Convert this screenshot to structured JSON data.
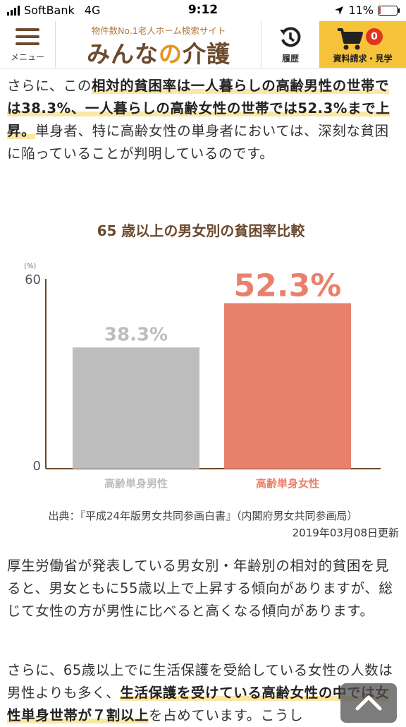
{
  "status_bar": {
    "carrier": "SoftBank",
    "network": "4G",
    "time": "9:12",
    "battery_pct": "11%",
    "battery_level": 0.11
  },
  "header": {
    "menu_label": "メニュー",
    "logo_subtitle": "物件数No.1老人ホーム検索サイト",
    "logo_main_a": "みんな",
    "logo_main_b": "の",
    "logo_main_c": "介護",
    "history_label": "履歴",
    "cart_label": "資料請求・見学",
    "cart_count": "0"
  },
  "para1": {
    "pre": "さらに、この",
    "hl1": "相対的貧困率は一人暮らしの高齢男性の世帯では38.3%、一人暮らしの高齢女性の世帯では52.3%まで上昇。",
    "post": "単身者、特に高齢女性の単身者においては、深刻な貧困に陥っていることが判明しているのです。"
  },
  "chart_data": {
    "type": "bar",
    "title": "65 歳以上の男女別の貧困率比較",
    "ylabel": "(%)",
    "ylim": [
      0,
      60
    ],
    "yticks": [
      "0",
      "60"
    ],
    "categories": [
      "高齢単身男性",
      "高齢単身女性"
    ],
    "values": [
      38.3,
      52.3
    ],
    "value_labels": [
      "38.3%",
      "52.3%"
    ],
    "colors": [
      "#bdbdbd",
      "#e8816c"
    ],
    "label_colors": [
      "#bdbdbd",
      "#e8816c"
    ]
  },
  "source": "出典：『平成24年版男女共同参画白書』（内閣府男女共同参画局）",
  "updated": "2019年03月08日更新",
  "para2": "厚生労働省が発表している男女別・年齢別の相対的貧困を見ると、男女ともに55歳以上で上昇する傾向がありますが、総じて女性の方が男性に比べると高くなる傾向があります。",
  "para3": {
    "pre": "さらに、65歳以上でに生活保護を受給している女性の人数は男性よりも多く、",
    "hl1": "生活保護を受けている高齢女性の中では女性単身世帯が７割以上",
    "post": "を占めています。こうし"
  }
}
